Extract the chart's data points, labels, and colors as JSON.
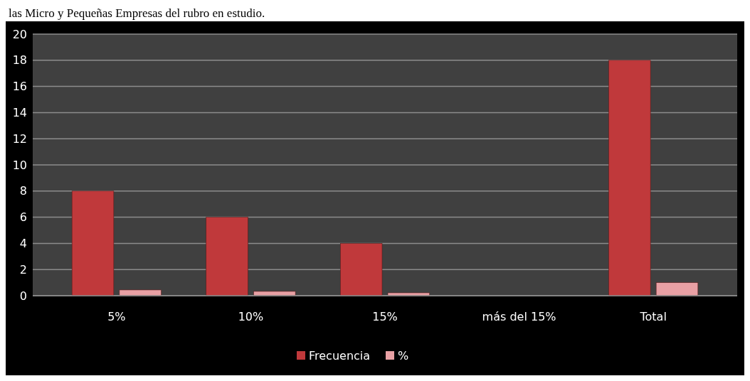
{
  "chart_data": {
    "type": "bar",
    "title": "las Micro y Pequeñas Empresas del rubro en estudio.",
    "categories": [
      "5%",
      "10%",
      "15%",
      "más del 15%",
      "Total"
    ],
    "series": [
      {
        "name": "Frecuencia",
        "color": "#c0393b",
        "values": [
          8,
          6,
          4,
          0,
          18
        ]
      },
      {
        "name": "%",
        "color": "#e8a0a4",
        "values": [
          0.44,
          0.33,
          0.22,
          0,
          1
        ]
      }
    ],
    "ylim": [
      0,
      20
    ],
    "yticks": [
      0,
      2,
      4,
      6,
      8,
      10,
      12,
      14,
      16,
      18,
      20
    ],
    "grid": "y",
    "legend": "bottom"
  }
}
